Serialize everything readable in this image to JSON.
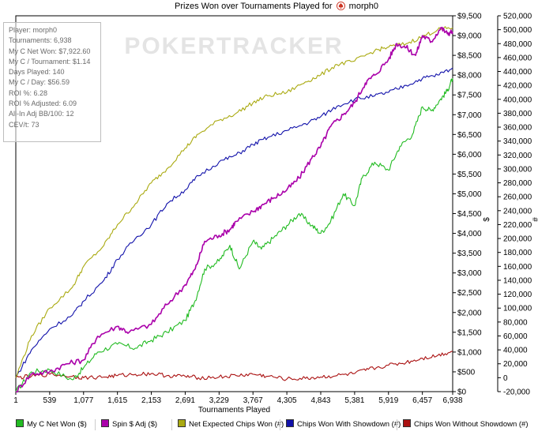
{
  "title": {
    "prefix": "Prizes Won over Tournaments Played for",
    "player": "morph0"
  },
  "watermark": "POKERTRACKER",
  "info": {
    "player": "Player: morph0",
    "tournaments": "Tournaments: 6,938",
    "net_won": "My C Net Won: $7,922.60",
    "per_tournament": "My C / Tournament: $1.14",
    "days": "Days Played: 140",
    "per_day": "My C / Day: $56.59",
    "roi": "ROI %: 6.28",
    "roi_adj": "ROI % Adjusted: 6.09",
    "allin": "All-In Adj BB/100: 12",
    "cev": "CEV/t: 73"
  },
  "colors": {
    "c_net": "#22bb22",
    "spin_adj": "#aa00aa",
    "net_expected": "#aaaa11",
    "showdown": "#1111aa",
    "no_showdown": "#aa1111"
  },
  "chart_data": {
    "type": "line",
    "xlabel": "Tournaments Played",
    "ylabel_left": "$",
    "ylabel_right": "#",
    "xlim": [
      1,
      6938
    ],
    "ylim_left": [
      0,
      9500
    ],
    "ylim_right": [
      -20000,
      520000
    ],
    "x_ticks": [
      "1",
      "539",
      "1,077",
      "1,615",
      "2,153",
      "2,691",
      "3,229",
      "3,767",
      "4,305",
      "4,843",
      "5,381",
      "5,919",
      "6,457",
      "6,938"
    ],
    "y_ticks_left": [
      "$0",
      "$500",
      "$1,000",
      "$1,500",
      "$2,000",
      "$2,500",
      "$3,000",
      "$3,500",
      "$4,000",
      "$4,500",
      "$5,000",
      "$5,500",
      "$6,000",
      "$6,500",
      "$7,000",
      "$7,500",
      "$8,000",
      "$8,500",
      "$9,000",
      "$9,500"
    ],
    "y_ticks_right": [
      "-20,000",
      "0",
      "20,000",
      "40,000",
      "60,000",
      "80,000",
      "100,000",
      "120,000",
      "140,000",
      "160,000",
      "180,000",
      "200,000",
      "220,000",
      "240,000",
      "260,000",
      "280,000",
      "300,000",
      "320,000",
      "340,000",
      "360,000",
      "380,000",
      "400,000",
      "420,000",
      "440,000",
      "460,000",
      "480,000",
      "500,000",
      "520,000"
    ],
    "grid": false,
    "legend_position": "bottom",
    "series": [
      {
        "name": "My C Net Won ($)",
        "axis": "left",
        "color": "#22bb22",
        "x": [
          1,
          250,
          539,
          900,
          1077,
          1300,
          1615,
          1900,
          2153,
          2400,
          2691,
          2850,
          3000,
          3229,
          3400,
          3550,
          3767,
          3900,
          4100,
          4305,
          4500,
          4700,
          4843,
          5000,
          5200,
          5381,
          5500,
          5700,
          5919,
          6100,
          6300,
          6457,
          6600,
          6750,
          6850,
          6938
        ],
        "y": [
          0,
          500,
          550,
          300,
          600,
          1000,
          1200,
          1100,
          1300,
          1500,
          1800,
          2300,
          3100,
          3300,
          3700,
          3100,
          3800,
          3600,
          3900,
          4200,
          4500,
          4200,
          4000,
          4300,
          5000,
          4700,
          5400,
          5800,
          5600,
          6200,
          6500,
          7200,
          7100,
          7400,
          7600,
          7920
        ]
      },
      {
        "name": "Spin $ Adj ($)",
        "axis": "left",
        "color": "#aa00aa",
        "x": [
          1,
          250,
          539,
          800,
          1077,
          1300,
          1615,
          1800,
          2153,
          2400,
          2691,
          2850,
          3000,
          3229,
          3400,
          3500,
          3767,
          3900,
          4100,
          4305,
          4500,
          4700,
          4843,
          5000,
          5200,
          5381,
          5550,
          5700,
          5919,
          6050,
          6200,
          6350,
          6457,
          6600,
          6750,
          6850,
          6938
        ],
        "y": [
          0,
          450,
          500,
          700,
          800,
          1400,
          1650,
          1500,
          1700,
          2200,
          2700,
          3100,
          3800,
          3950,
          4100,
          4300,
          4550,
          4700,
          4900,
          5100,
          5400,
          5900,
          6200,
          6700,
          7000,
          7300,
          7800,
          8000,
          8400,
          8800,
          8700,
          8500,
          9000,
          8850,
          9200,
          9050,
          9100
        ]
      },
      {
        "name": "Net Expected Chips Won (#)",
        "axis": "right",
        "color": "#aaaa11",
        "x": [
          1,
          250,
          539,
          900,
          1077,
          1400,
          1615,
          1900,
          2153,
          2400,
          2691,
          2900,
          3229,
          3500,
          3767,
          4000,
          4305,
          4600,
          4843,
          5100,
          5381,
          5700,
          5919,
          6200,
          6457,
          6700,
          6938
        ],
        "y": [
          0,
          60000,
          100000,
          130000,
          160000,
          190000,
          220000,
          250000,
          280000,
          300000,
          330000,
          350000,
          370000,
          380000,
          395000,
          405000,
          410000,
          425000,
          435000,
          450000,
          455000,
          470000,
          475000,
          480000,
          490000,
          500000,
          503000
        ]
      },
      {
        "name": "Chips Won With Showdown (#)",
        "axis": "right",
        "color": "#1111aa",
        "x": [
          1,
          250,
          539,
          900,
          1077,
          1400,
          1615,
          1900,
          2153,
          2400,
          2691,
          2900,
          3229,
          3500,
          3767,
          4000,
          4305,
          4600,
          4843,
          5100,
          5381,
          5700,
          5919,
          6200,
          6457,
          6700,
          6938
        ],
        "y": [
          0,
          40000,
          70000,
          90000,
          110000,
          140000,
          170000,
          200000,
          220000,
          250000,
          270000,
          290000,
          310000,
          320000,
          335000,
          345000,
          355000,
          365000,
          375000,
          390000,
          400000,
          405000,
          410000,
          420000,
          430000,
          435000,
          445000
        ]
      },
      {
        "name": "Chips Won Without Showdown (#)",
        "axis": "right",
        "color": "#aa1111",
        "x": [
          1,
          250,
          539,
          900,
          1077,
          1400,
          1615,
          1900,
          2153,
          2400,
          2691,
          2900,
          3229,
          3500,
          3767,
          4000,
          4305,
          4600,
          4843,
          5100,
          5381,
          5600,
          5919,
          6200,
          6457,
          6700,
          6938
        ],
        "y": [
          0,
          2000,
          5000,
          2000,
          0,
          1000,
          3000,
          5000,
          6000,
          3000,
          2000,
          0,
          1000,
          3000,
          5000,
          2000,
          -2000,
          -1000,
          1000,
          3000,
          6000,
          12000,
          18000,
          22000,
          28000,
          32000,
          38000
        ]
      }
    ]
  }
}
